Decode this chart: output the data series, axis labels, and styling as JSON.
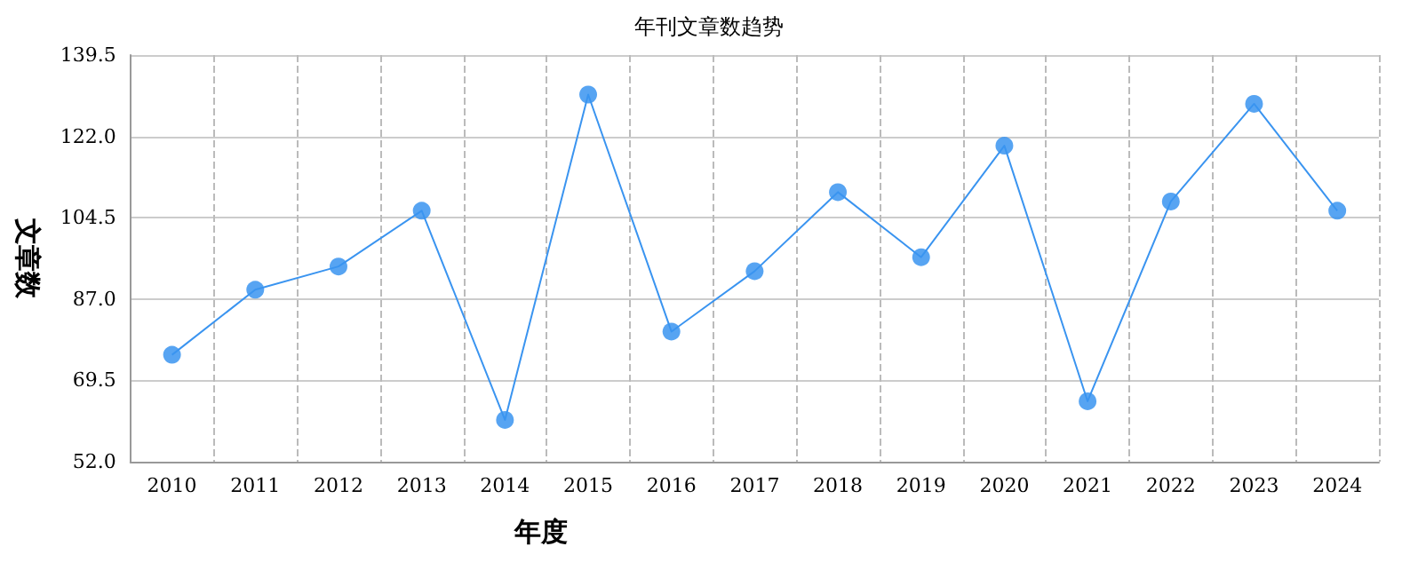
{
  "chart_data": {
    "type": "line",
    "title": "年刊文章数趋势",
    "xlabel": "年度",
    "ylabel": "文章数",
    "categories": [
      "2010",
      "2011",
      "2012",
      "2013",
      "2014",
      "2015",
      "2016",
      "2017",
      "2018",
      "2019",
      "2020",
      "2021",
      "2022",
      "2023",
      "2024"
    ],
    "series": [
      {
        "color": "#3a94f0",
        "values": [
          75,
          89,
          94,
          106,
          61,
          131,
          80,
          93,
          110,
          96,
          120,
          65,
          108,
          129,
          106
        ]
      }
    ],
    "ylim": [
      52,
      139.5
    ],
    "yticks": [
      {
        "value": 52,
        "label": "52.0"
      },
      {
        "value": 69.5,
        "label": "69.5"
      },
      {
        "value": 87,
        "label": "87.0"
      },
      {
        "value": 104.5,
        "label": "104.5"
      },
      {
        "value": 122,
        "label": "122.0"
      },
      {
        "value": 139.5,
        "label": "139.5"
      }
    ],
    "grid": true,
    "marker": "circle",
    "line_style": "solid"
  }
}
